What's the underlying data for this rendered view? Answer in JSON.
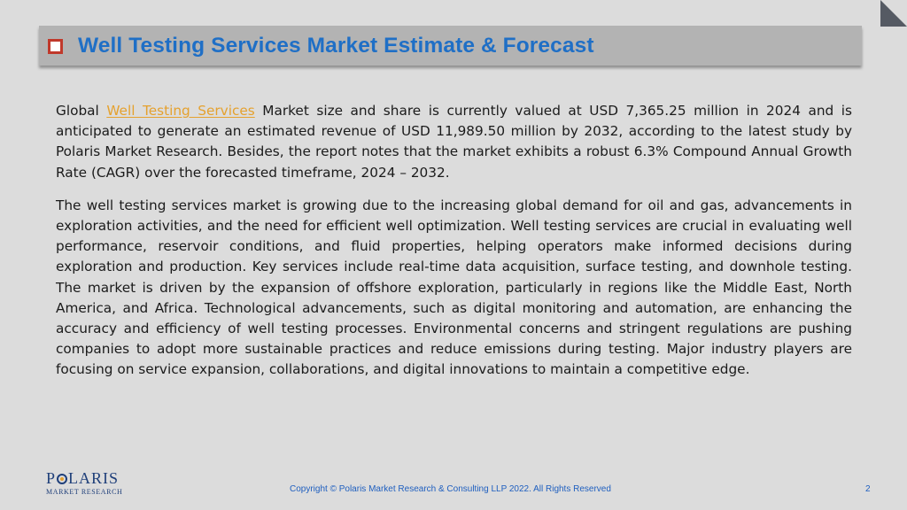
{
  "slide": {
    "title": "Well Testing Services Market Estimate & Forecast",
    "paragraph1": {
      "before_link": "Global ",
      "link_text": "Well Testing Services",
      "after_link": " Market size and share is currently valued at USD 7,365.25 million in 2024 and is anticipated to generate an estimated revenue of USD 11,989.50 million by 2032, according to the latest study by Polaris Market Research. Besides, the report notes that the market exhibits a robust 6.3% Compound Annual Growth Rate (CAGR) over the forecasted timeframe, 2024 – 2032."
    },
    "paragraph2": "The well testing services market is growing due to the increasing global demand for oil and gas, advancements in exploration activities, and the need for efficient well optimization. Well testing services are crucial in evaluating well performance, reservoir conditions, and fluid properties, helping operators make informed decisions during exploration and production. Key services include real-time data acquisition, surface testing, and downhole testing. The market is driven by the expansion of offshore exploration, particularly in regions like the Middle East, North America, and Africa. Technological advancements, such as digital monitoring and automation, are enhancing the accuracy and efficiency of well testing processes. Environmental concerns and stringent regulations are pushing companies to adopt more sustainable practices and reduce emissions during testing. Major industry players are focusing on service expansion, collaborations, and digital innovations to maintain a competitive edge."
  },
  "footer": {
    "logo_name_part1": "P",
    "logo_name_part2": "LARIS",
    "logo_tagline": "MARKET RESEARCH",
    "copyright": "Copyright © Polaris Market Research & Consulting LLP 2022. All Rights Reserved",
    "page_number": "2"
  },
  "colors": {
    "background": "#dcdcdc",
    "title_bar": "#b3b3b3",
    "title_text": "#1f6fc6",
    "bullet": "#c0392b",
    "link": "#e5a12e",
    "body_text": "#1b1b1b",
    "footer_text": "#1f5fbf",
    "logo": "#1f3f7a"
  },
  "icons": {
    "title_bullet": "square-bullet-icon",
    "corner": "page-corner-fold-icon"
  }
}
